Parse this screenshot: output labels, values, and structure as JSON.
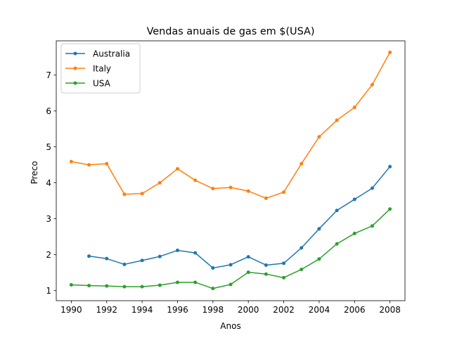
{
  "chart_data": {
    "type": "line",
    "title": "Vendas anuais de gas em $(USA)",
    "xlabel": "Anos",
    "ylabel": "Preco",
    "xlim": [
      1989.15,
      2008.85
    ],
    "ylim": [
      0.72,
      7.95
    ],
    "xticks": [
      1990,
      1992,
      1994,
      1996,
      1998,
      2000,
      2002,
      2004,
      2006,
      2008
    ],
    "xtick_labels": [
      "1990",
      "1992",
      "1994",
      "1996",
      "1998",
      "2000",
      "2002",
      "2004",
      "2006",
      "2008"
    ],
    "yticks": [
      1,
      2,
      3,
      4,
      5,
      6,
      7
    ],
    "ytick_labels": [
      "1",
      "2",
      "3",
      "4",
      "5",
      "6",
      "7"
    ],
    "legend_position": "top-left",
    "series": [
      {
        "name": "Australia",
        "color": "#1f77b4",
        "x": [
          1991,
          1992,
          1993,
          1994,
          1995,
          1996,
          1997,
          1998,
          1999,
          2000,
          2001,
          2002,
          2003,
          2004,
          2005,
          2006,
          2007,
          2008
        ],
        "y": [
          1.96,
          1.89,
          1.73,
          1.84,
          1.95,
          2.12,
          2.05,
          1.63,
          1.72,
          1.94,
          1.71,
          1.76,
          2.19,
          2.72,
          3.23,
          3.54,
          3.85,
          4.45
        ]
      },
      {
        "name": "Italy",
        "color": "#ff7f0e",
        "x": [
          1990,
          1991,
          1992,
          1993,
          1994,
          1995,
          1996,
          1997,
          1998,
          1999,
          2000,
          2001,
          2002,
          2003,
          2004,
          2005,
          2006,
          2007,
          2008
        ],
        "y": [
          4.59,
          4.5,
          4.53,
          3.68,
          3.7,
          4.0,
          4.39,
          4.07,
          3.84,
          3.87,
          3.77,
          3.57,
          3.74,
          4.53,
          5.28,
          5.74,
          6.1,
          6.73,
          7.63
        ]
      },
      {
        "name": "USA",
        "color": "#2ca02c",
        "x": [
          1990,
          1991,
          1992,
          1993,
          1994,
          1995,
          1996,
          1997,
          1998,
          1999,
          2000,
          2001,
          2002,
          2003,
          2004,
          2005,
          2006,
          2007,
          2008
        ],
        "y": [
          1.16,
          1.14,
          1.13,
          1.11,
          1.11,
          1.15,
          1.23,
          1.23,
          1.06,
          1.17,
          1.51,
          1.46,
          1.36,
          1.59,
          1.88,
          2.3,
          2.59,
          2.8,
          3.27
        ]
      }
    ]
  }
}
